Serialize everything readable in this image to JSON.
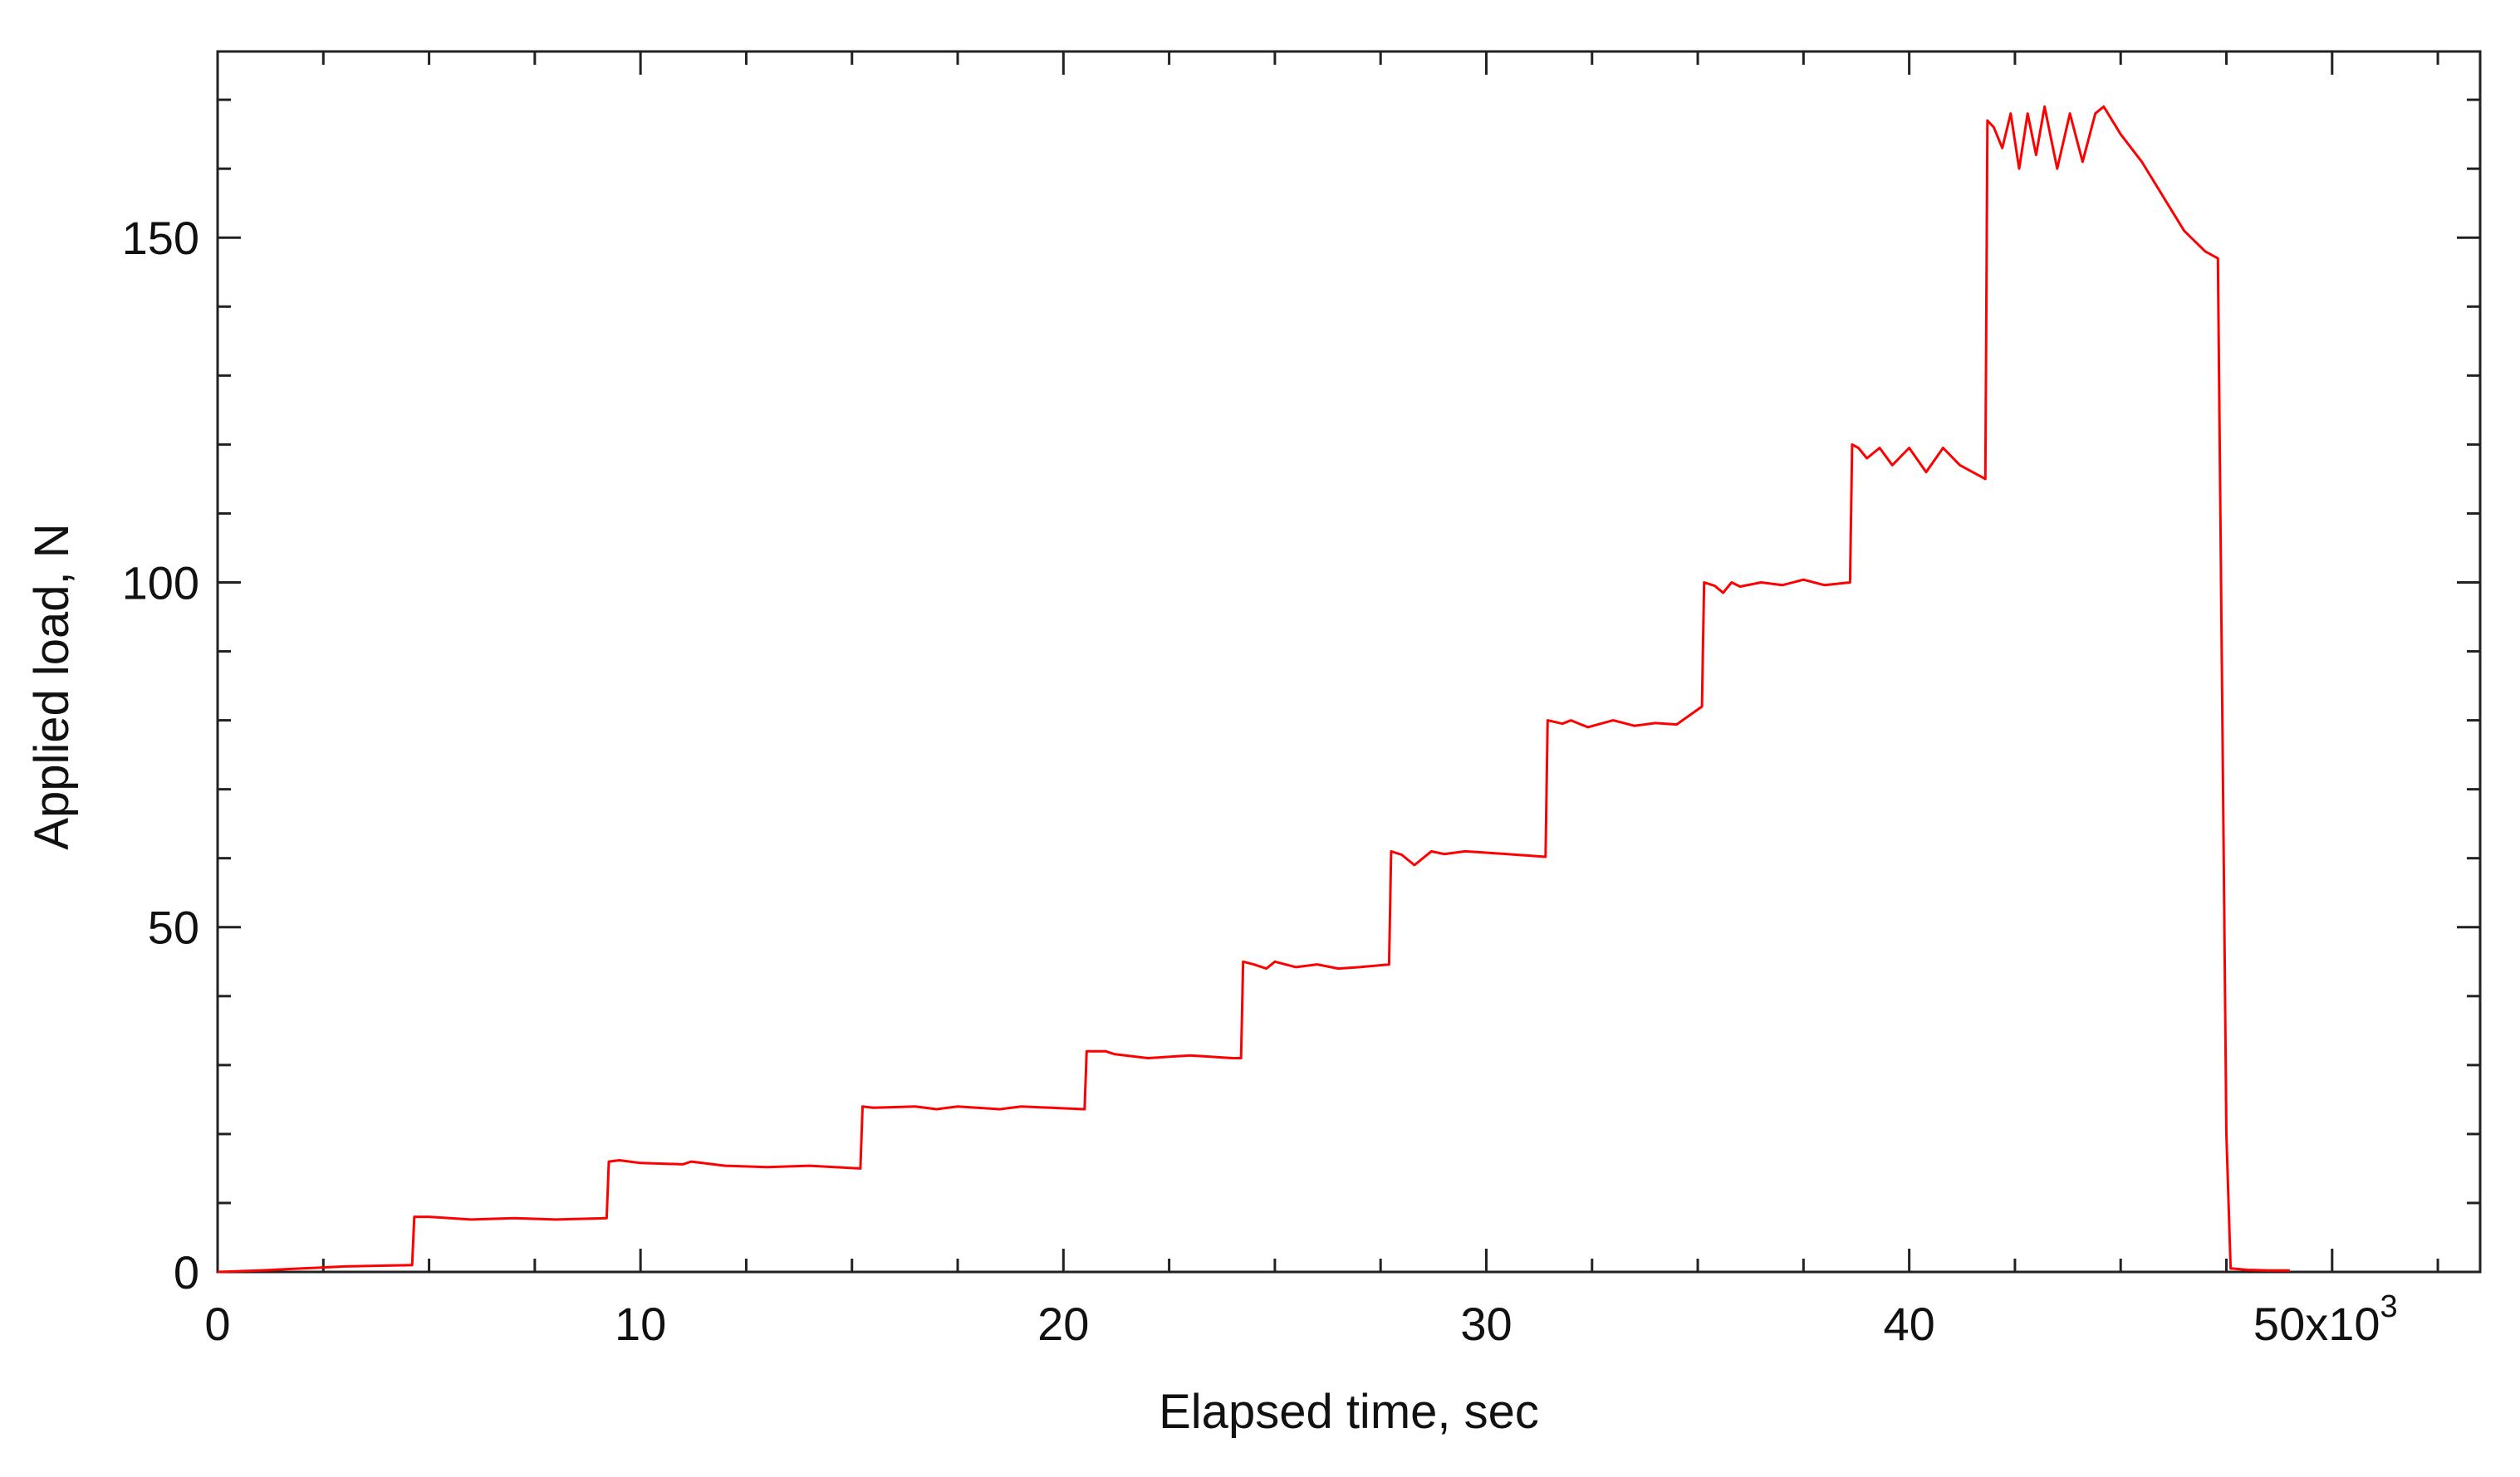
{
  "chart_data": {
    "type": "line",
    "title": "",
    "xlabel": "Elapsed time, sec",
    "ylabel": "Applied load, N",
    "xlim": [
      0,
      53500
    ],
    "ylim": [
      0,
      177
    ],
    "x_ticks": [
      {
        "value": 0,
        "label": "0"
      },
      {
        "value": 10000,
        "label": "10"
      },
      {
        "value": 20000,
        "label": "20"
      },
      {
        "value": 30000,
        "label": "30"
      },
      {
        "value": 40000,
        "label": "40"
      },
      {
        "value": 50000,
        "label": "50x10",
        "exponent": "3"
      }
    ],
    "y_ticks": [
      {
        "value": 0,
        "label": "0"
      },
      {
        "value": 50,
        "label": "50"
      },
      {
        "value": 100,
        "label": "100"
      },
      {
        "value": 150,
        "label": "150"
      }
    ],
    "grid": false,
    "legend": "none",
    "colors": {
      "line": "#ff0000",
      "axis": "#222222"
    },
    "series": [
      {
        "x": [
          0,
          1000,
          2000,
          3000,
          4600,
          4650,
          5000,
          6000,
          7000,
          8000,
          9200,
          9250,
          9500,
          10000,
          11000,
          11200,
          12000,
          13000,
          14000,
          15200,
          15250,
          15500,
          16500,
          17000,
          17500,
          18500,
          19000,
          20500,
          20550,
          21000,
          21200,
          22000,
          23000,
          24000,
          24200,
          24250,
          24500,
          24800,
          25000,
          25500,
          26000,
          26500,
          27000,
          27700,
          27750,
          28000,
          28300,
          28700,
          29000,
          29500,
          30500,
          31400,
          31450,
          31800,
          32000,
          32400,
          33000,
          33500,
          34000,
          34500,
          35100,
          35150,
          35400,
          35600,
          35800,
          36000,
          36500,
          37000,
          37500,
          38000,
          38600,
          38650,
          38800,
          39000,
          39300,
          39600,
          40000,
          40400,
          40800,
          41200,
          41800,
          41850,
          42000,
          42200,
          42400,
          42600,
          42800,
          43000,
          43200,
          43500,
          43800,
          44100,
          44400,
          44600,
          45000,
          45500,
          46000,
          46500,
          47000,
          47300,
          47500,
          47600,
          48000,
          48500,
          49000
        ],
        "y": [
          0,
          0.2,
          0.5,
          0.8,
          1,
          8,
          8,
          7.6,
          7.8,
          7.6,
          7.8,
          16,
          16.2,
          15.8,
          15.6,
          16,
          15.4,
          15.2,
          15.4,
          15,
          24,
          23.8,
          24,
          23.6,
          24,
          23.6,
          24,
          23.6,
          32,
          32,
          31.6,
          31,
          31.4,
          31,
          31,
          45,
          44.6,
          44,
          45,
          44.2,
          44.6,
          44,
          44.2,
          44.6,
          61,
          60.5,
          59,
          61,
          60.6,
          61,
          60.6,
          60.2,
          80,
          79.5,
          80,
          79,
          80,
          79.2,
          79.6,
          79.4,
          82,
          100,
          99.5,
          98.5,
          100,
          99.4,
          100,
          99.6,
          100.4,
          99.6,
          100,
          120,
          119.5,
          118,
          119.5,
          117,
          119.5,
          116,
          119.5,
          117,
          115,
          167,
          166,
          163,
          168,
          160,
          168,
          162,
          169,
          160,
          168,
          161,
          168,
          169,
          165,
          161,
          156,
          151,
          148,
          147,
          20,
          0.5,
          0.3,
          0.2,
          0.2
        ]
      }
    ]
  }
}
